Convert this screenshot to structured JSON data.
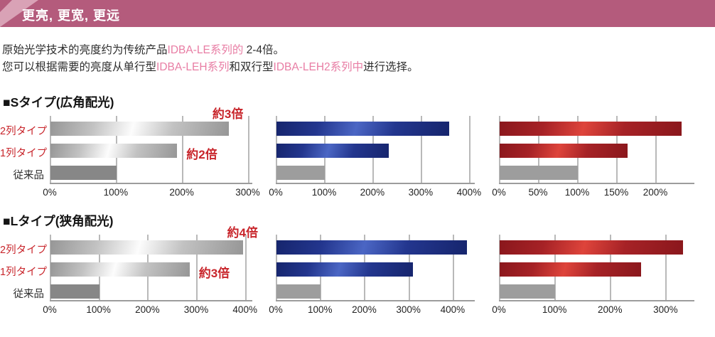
{
  "header": {
    "title": "更亮, 更宽, 更远",
    "bg_color": "#b45b7c",
    "accent_color": "#d9a2b6",
    "text_color": "#ffffff"
  },
  "intro": {
    "line1": [
      {
        "text": "原始光学技术的亮度约为传统产品",
        "pink": false
      },
      {
        "text": "IDBA-LE系列的",
        "pink": true
      },
      {
        "text": " 2-4倍。",
        "pink": false
      }
    ],
    "line2": [
      {
        "text": "您可以根据需要的亮度从单行型",
        "pink": false
      },
      {
        "text": "IDBA-LEH系列",
        "pink": true
      },
      {
        "text": "和双行型",
        "pink": false
      },
      {
        "text": "IDBA-LEH2系列中",
        "pink": true
      },
      {
        "text": "进行选择。",
        "pink": false
      }
    ]
  },
  "sections": [
    {
      "title": "■Sタイプ(広角配光)"
    },
    {
      "title": "■Lタイプ(狭角配光)"
    }
  ],
  "colors": {
    "pink_text": "#e87da4",
    "red_text": "#c8252b",
    "dark_text": "#2e2e2e",
    "grid": "#b9b9b9",
    "axis": "#9c9c9c"
  },
  "palettes": {
    "gray": {
      "edge": "#969696",
      "base": "#c2c2c2",
      "shine": "#fcfcfc",
      "conv": "#878787"
    },
    "blue": {
      "edge": "#16256d",
      "base": "#23368e",
      "shine": "#4b66c4",
      "conv": "#9d9d9d"
    },
    "red": {
      "edge": "#8a171c",
      "base": "#a62226",
      "shine": "#de443b",
      "conv": "#9d9d9d"
    }
  },
  "chart_data": [
    {
      "id": "s-wide-gray",
      "type": "bar",
      "orientation": "horizontal",
      "section": 0,
      "palette": "gray",
      "title": "Sタイプ(広角配光) 亮度比较 (灰)",
      "unit": "%",
      "categories": [
        "2列タイプ",
        "1列タイプ",
        "従来品"
      ],
      "category_colors": [
        "#c8252b",
        "#c8252b",
        "#2e2e2e"
      ],
      "show_category_labels": true,
      "values": [
        270,
        192,
        100
      ],
      "xlim": [
        0,
        307
      ],
      "ticks": [
        0,
        100,
        200,
        300
      ],
      "tick_labels": [
        "0%",
        "100%",
        "200%",
        "300%"
      ],
      "grid": true,
      "annotations": [
        {
          "text": "約3倍",
          "row": 0,
          "placement": "above"
        },
        {
          "text": "約2倍",
          "row": 1,
          "placement": "right"
        }
      ]
    },
    {
      "id": "s-wide-blue",
      "type": "bar",
      "orientation": "horizontal",
      "section": 0,
      "palette": "blue",
      "title": "Sタイプ(広角配光) 亮度比较 (蓝)",
      "unit": "%",
      "categories": [
        "2列タイプ",
        "1列タイプ",
        "従来品"
      ],
      "show_category_labels": false,
      "values": [
        358,
        233,
        100
      ],
      "xlim": [
        0,
        412
      ],
      "ticks": [
        0,
        100,
        200,
        300,
        400
      ],
      "tick_labels": [
        "0%",
        "100%",
        "200%",
        "300%",
        "400%"
      ],
      "grid": true,
      "annotations": []
    },
    {
      "id": "s-wide-red",
      "type": "bar",
      "orientation": "horizontal",
      "section": 0,
      "palette": "red",
      "title": "Sタイプ(広角配光) 亮度比较 (红)",
      "unit": "%",
      "categories": [
        "2列タイプ",
        "1列タイプ",
        "従来品"
      ],
      "show_category_labels": false,
      "values": [
        233,
        164,
        100
      ],
      "xlim": [
        0,
        250
      ],
      "ticks": [
        0,
        50,
        100,
        150,
        200
      ],
      "tick_labels": [
        "0%",
        "50%",
        "100%",
        "150%",
        "200%"
      ],
      "grid": true,
      "annotations": []
    },
    {
      "id": "l-narrow-gray",
      "type": "bar",
      "orientation": "horizontal",
      "section": 1,
      "palette": "gray",
      "title": "Lタイプ(狭角配光) 亮度比较 (灰)",
      "unit": "%",
      "categories": [
        "2列タイプ",
        "1列タイプ",
        "従来品"
      ],
      "category_colors": [
        "#c8252b",
        "#c8252b",
        "#2e2e2e"
      ],
      "show_category_labels": true,
      "values": [
        395,
        285,
        100
      ],
      "xlim": [
        0,
        415
      ],
      "ticks": [
        0,
        100,
        200,
        300,
        400
      ],
      "tick_labels": [
        "0%",
        "100%",
        "200%",
        "300%",
        "400%"
      ],
      "grid": true,
      "annotations": [
        {
          "text": "約4倍",
          "row": 0,
          "placement": "above"
        },
        {
          "text": "約3倍",
          "row": 1,
          "placement": "right"
        }
      ]
    },
    {
      "id": "l-narrow-blue",
      "type": "bar",
      "orientation": "horizontal",
      "section": 1,
      "palette": "blue",
      "title": "Lタイプ(狭角配光) 亮度比较 (蓝)",
      "unit": "%",
      "categories": [
        "2列タイプ",
        "1列タイプ",
        "従来品"
      ],
      "show_category_labels": false,
      "values": [
        430,
        308,
        100
      ],
      "xlim": [
        0,
        450
      ],
      "ticks": [
        0,
        100,
        200,
        300,
        400
      ],
      "tick_labels": [
        "0%",
        "100%",
        "200%",
        "300%",
        "400%"
      ],
      "grid": true,
      "annotations": []
    },
    {
      "id": "l-narrow-red",
      "type": "bar",
      "orientation": "horizontal",
      "section": 1,
      "palette": "red",
      "title": "Lタイプ(狭角配光) 亮度比较 (红)",
      "unit": "%",
      "categories": [
        "2列タイプ",
        "1列タイプ",
        "従来品"
      ],
      "show_category_labels": false,
      "values": [
        330,
        255,
        100
      ],
      "xlim": [
        0,
        352
      ],
      "ticks": [
        0,
        100,
        200,
        300
      ],
      "tick_labels": [
        "0%",
        "100%",
        "200%",
        "300%"
      ],
      "grid": true,
      "annotations": []
    }
  ]
}
